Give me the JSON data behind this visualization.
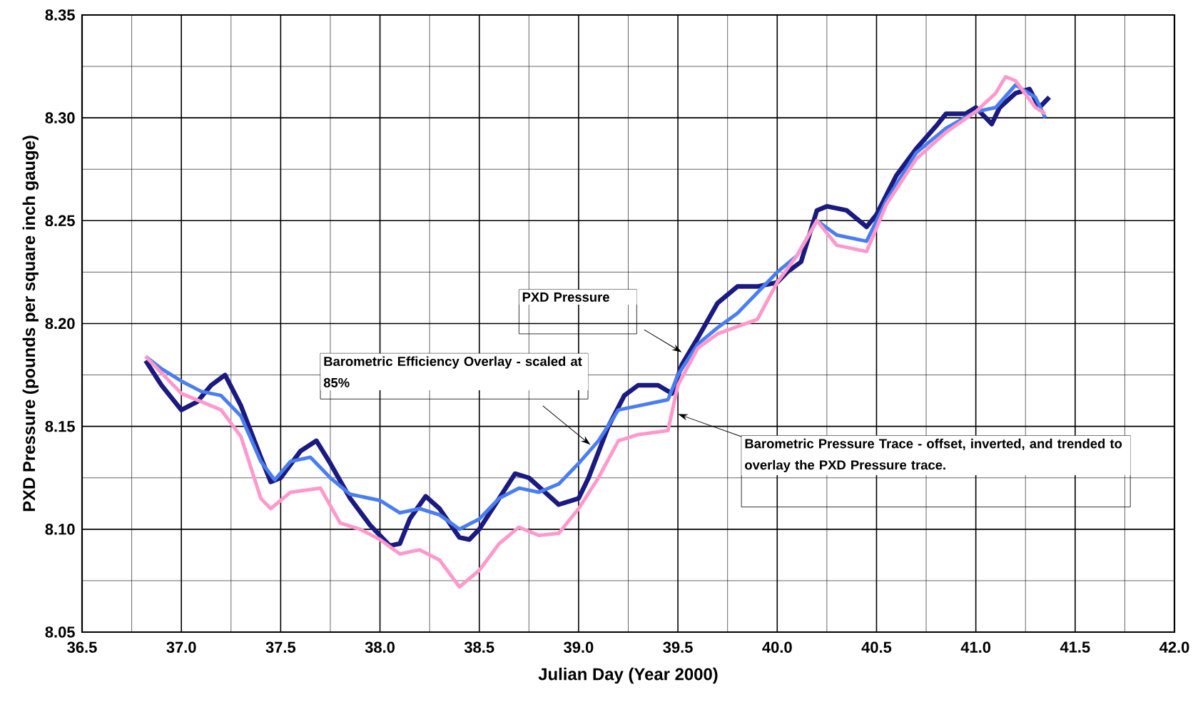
{
  "chart_data": {
    "type": "line",
    "xlabel": "Julian Day (Year 2000)",
    "ylabel": "PXD Pressure (pounds per square inch gauge)",
    "xlim": [
      36.5,
      42.0
    ],
    "ylim": [
      8.05,
      8.35
    ],
    "xticks": [
      {
        "value": 36.5,
        "label": "36.5"
      },
      {
        "value": 37.0,
        "label": "37.0"
      },
      {
        "value": 37.5,
        "label": "37.5"
      },
      {
        "value": 38.0,
        "label": "38.0"
      },
      {
        "value": 38.5,
        "label": "38.5"
      },
      {
        "value": 39.0,
        "label": "39.0"
      },
      {
        "value": 39.5,
        "label": "39.5"
      },
      {
        "value": 40.0,
        "label": "40.0"
      },
      {
        "value": 40.5,
        "label": "40.5"
      },
      {
        "value": 41.0,
        "label": "41.0"
      },
      {
        "value": 41.5,
        "label": "41.5"
      },
      {
        "value": 42.0,
        "label": "42.0"
      }
    ],
    "yticks": [
      {
        "value": 8.05,
        "label": "8.05"
      },
      {
        "value": 8.1,
        "label": "8.10"
      },
      {
        "value": 8.15,
        "label": "8.15"
      },
      {
        "value": 8.2,
        "label": "8.20"
      },
      {
        "value": 8.25,
        "label": "8.25"
      },
      {
        "value": 8.3,
        "label": "8.30"
      },
      {
        "value": 8.35,
        "label": "8.35"
      }
    ],
    "grid": true,
    "marker": "none",
    "line_style": "solid",
    "annotations": [
      "PXD Pressure",
      "Barometric Efficiency Overlay - scaled at 85%",
      "Barometric Pressure Trace - offset, inverted, and trended to overlay the PXD Pressure trace."
    ],
    "series": [
      {
        "color": "#1a1a80",
        "x": [
          36.82,
          36.9,
          37.0,
          37.08,
          37.15,
          37.22,
          37.3,
          37.4,
          37.45,
          37.5,
          37.6,
          37.68,
          37.75,
          37.85,
          37.95,
          38.05,
          38.1,
          38.15,
          38.23,
          38.3,
          38.4,
          38.45,
          38.5,
          38.6,
          38.68,
          38.75,
          38.9,
          39.0,
          39.05,
          39.15,
          39.23,
          39.3,
          39.4,
          39.47,
          39.52,
          39.6,
          39.7,
          39.8,
          39.9,
          40.0,
          40.05,
          40.12,
          40.2,
          40.25,
          40.35,
          40.45,
          40.5,
          40.6,
          40.7,
          40.8,
          40.85,
          40.95,
          41.0,
          41.08,
          41.12,
          41.2,
          41.27,
          41.32,
          41.37
        ],
        "values": [
          8.182,
          8.17,
          8.158,
          8.162,
          8.17,
          8.175,
          8.16,
          8.135,
          8.123,
          8.125,
          8.138,
          8.143,
          8.132,
          8.115,
          8.102,
          8.092,
          8.093,
          8.105,
          8.116,
          8.11,
          8.096,
          8.095,
          8.1,
          8.115,
          8.127,
          8.125,
          8.112,
          8.115,
          8.125,
          8.15,
          8.165,
          8.17,
          8.17,
          8.166,
          8.18,
          8.193,
          8.21,
          8.218,
          8.218,
          8.22,
          8.225,
          8.23,
          8.255,
          8.257,
          8.255,
          8.247,
          8.253,
          8.272,
          8.285,
          8.296,
          8.302,
          8.302,
          8.305,
          8.297,
          8.305,
          8.312,
          8.314,
          8.305,
          8.31
        ]
      },
      {
        "color": "#4a7ef0",
        "x": [
          36.82,
          36.9,
          37.0,
          37.1,
          37.2,
          37.3,
          37.4,
          37.47,
          37.55,
          37.65,
          37.75,
          37.85,
          38.0,
          38.1,
          38.2,
          38.3,
          38.4,
          38.5,
          38.6,
          38.7,
          38.8,
          38.9,
          39.0,
          39.1,
          39.2,
          39.3,
          39.45,
          39.5,
          39.6,
          39.7,
          39.8,
          39.9,
          40.0,
          40.1,
          40.2,
          40.3,
          40.45,
          40.55,
          40.7,
          40.85,
          41.0,
          41.1,
          41.2,
          41.3,
          41.35
        ],
        "values": [
          8.184,
          8.178,
          8.172,
          8.167,
          8.165,
          8.155,
          8.133,
          8.124,
          8.133,
          8.135,
          8.125,
          8.117,
          8.114,
          8.108,
          8.11,
          8.107,
          8.1,
          8.105,
          8.115,
          8.12,
          8.118,
          8.122,
          8.132,
          8.143,
          8.158,
          8.16,
          8.163,
          8.175,
          8.19,
          8.198,
          8.205,
          8.215,
          8.225,
          8.233,
          8.25,
          8.243,
          8.24,
          8.26,
          8.283,
          8.295,
          8.303,
          8.305,
          8.316,
          8.31,
          8.3
        ]
      },
      {
        "color": "#ff99cc",
        "x": [
          36.82,
          36.9,
          37.0,
          37.1,
          37.2,
          37.3,
          37.4,
          37.45,
          37.55,
          37.7,
          37.8,
          37.9,
          38.0,
          38.1,
          38.2,
          38.3,
          38.4,
          38.5,
          38.6,
          38.7,
          38.8,
          38.9,
          39.0,
          39.1,
          39.2,
          39.3,
          39.45,
          39.5,
          39.6,
          39.7,
          39.9,
          40.0,
          40.1,
          40.2,
          40.3,
          40.45,
          40.55,
          40.7,
          40.85,
          41.0,
          41.1,
          41.15,
          41.2,
          41.3,
          41.35
        ],
        "values": [
          8.184,
          8.176,
          8.166,
          8.162,
          8.158,
          8.145,
          8.115,
          8.11,
          8.118,
          8.12,
          8.103,
          8.1,
          8.095,
          8.088,
          8.09,
          8.085,
          8.072,
          8.08,
          8.093,
          8.101,
          8.097,
          8.098,
          8.11,
          8.125,
          8.143,
          8.146,
          8.148,
          8.17,
          8.188,
          8.195,
          8.202,
          8.22,
          8.233,
          8.25,
          8.238,
          8.235,
          8.258,
          8.28,
          8.293,
          8.303,
          8.312,
          8.32,
          8.318,
          8.305,
          8.302
        ]
      }
    ]
  }
}
